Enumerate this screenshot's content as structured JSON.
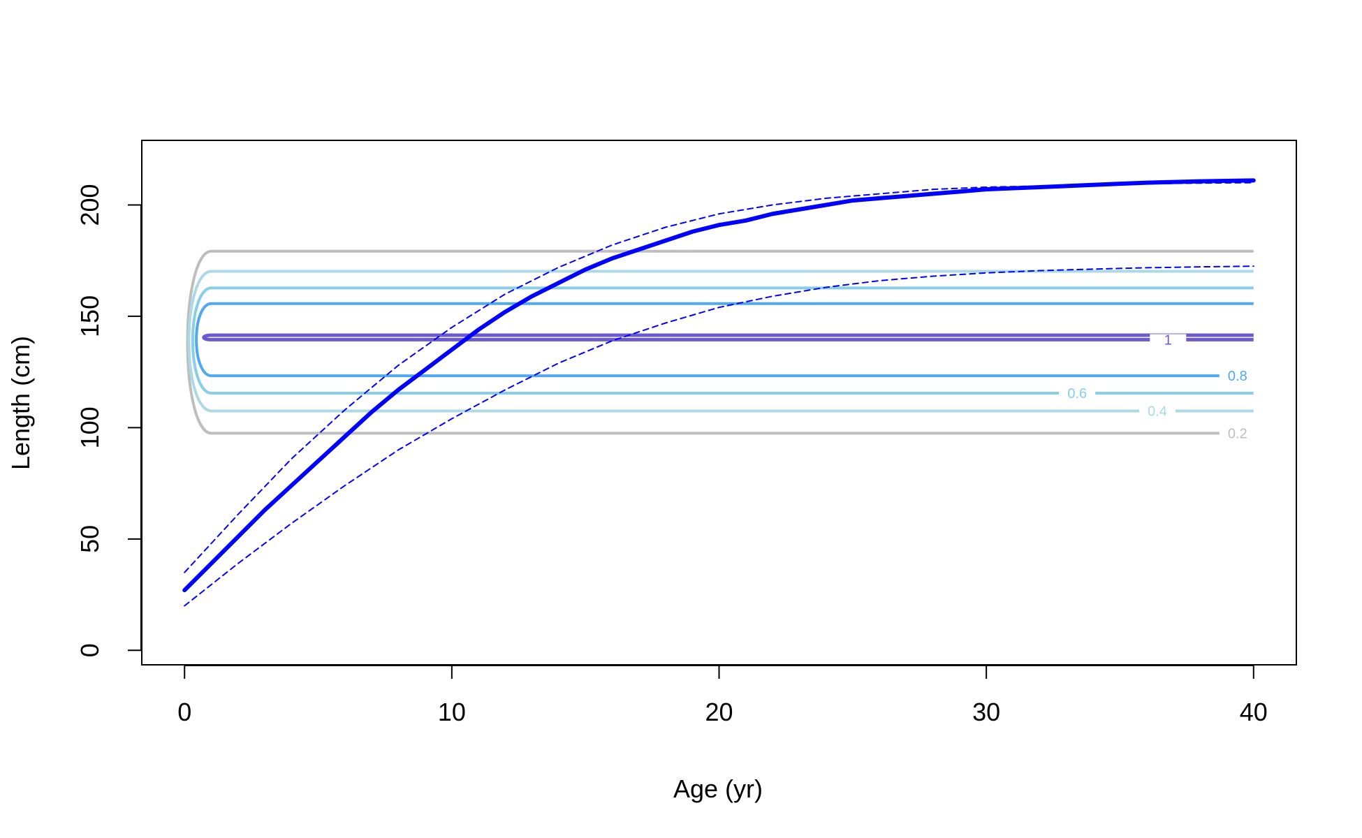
{
  "chart_data": {
    "type": "line",
    "xlabel": "Age (yr)",
    "ylabel": "Length (cm)",
    "xlim": [
      -1.6,
      41.6
    ],
    "ylim": [
      -6.5,
      229
    ],
    "x_ticks": [
      0,
      10,
      20,
      30,
      40
    ],
    "y_ticks": [
      0,
      50,
      100,
      150,
      200
    ],
    "grid": false,
    "legend": "none",
    "colors": {
      "growth": "#0000ff",
      "level_0_2": "#bebebe",
      "level_0_4": "#add8e6",
      "level_0_6": "#87ceeb",
      "level_0_8": "#4fa8f0",
      "level_1": "#6a5acd"
    },
    "series": [
      {
        "style": "solid-thick",
        "x": [
          0,
          1,
          2,
          3,
          4,
          5,
          6,
          7,
          8,
          9,
          10,
          11,
          12,
          13,
          14,
          15,
          16,
          17,
          18,
          19,
          20,
          21,
          22,
          23,
          24,
          25,
          26,
          27,
          28,
          29,
          30,
          31,
          32,
          33,
          34,
          35,
          36,
          37,
          38,
          39,
          40
        ],
        "values": [
          27,
          39,
          51,
          63,
          74,
          85,
          96,
          107,
          117,
          126,
          135,
          144,
          152,
          159,
          165,
          171,
          176,
          180,
          184,
          188,
          191,
          193,
          196,
          198,
          200,
          202,
          203,
          204,
          205,
          206,
          207,
          207.5,
          208,
          208.5,
          209,
          209.5,
          210,
          210.3,
          210.6,
          210.8,
          211
        ]
      },
      {
        "style": "dashed-upper",
        "x": [
          0,
          2,
          4,
          6,
          8,
          10,
          12,
          14,
          16,
          18,
          20,
          22,
          24,
          26,
          28,
          30,
          32,
          34,
          36,
          38,
          40
        ],
        "values": [
          35,
          61,
          86,
          108,
          128,
          145,
          160,
          172,
          182,
          190,
          196,
          200,
          203,
          205,
          207,
          208,
          208.5,
          209,
          209.5,
          209.8,
          210
        ]
      },
      {
        "style": "dashed-lower",
        "x": [
          0,
          2,
          4,
          6,
          8,
          10,
          12,
          14,
          16,
          18,
          20,
          22,
          24,
          26,
          28,
          30,
          32,
          34,
          36,
          38,
          40
        ],
        "values": [
          20,
          39,
          57,
          74,
          90,
          104,
          117,
          129,
          139,
          147,
          154,
          159,
          163,
          166,
          168,
          169.5,
          170.5,
          171.2,
          171.8,
          172.2,
          172.5
        ]
      }
    ],
    "contours": [
      {
        "level": "1",
        "color": "#6a5acd",
        "upper": 141.5,
        "lower": 139.5,
        "label_x": 36.8
      },
      {
        "level": "0.8",
        "color": "#4fa8f0",
        "upper": 155.7,
        "lower": 123.3,
        "label_x": 39.4
      },
      {
        "level": "0.6",
        "color": "#87ceeb",
        "upper": 162.7,
        "lower": 115.5,
        "label_x": 33.4
      },
      {
        "level": "0.4",
        "color": "#add8e6",
        "upper": 170.2,
        "lower": 107.5,
        "label_x": 36.4
      },
      {
        "level": "0.2",
        "color": "#bebebe",
        "upper": 179.2,
        "lower": 97.5,
        "label_x": 39.4
      }
    ]
  }
}
